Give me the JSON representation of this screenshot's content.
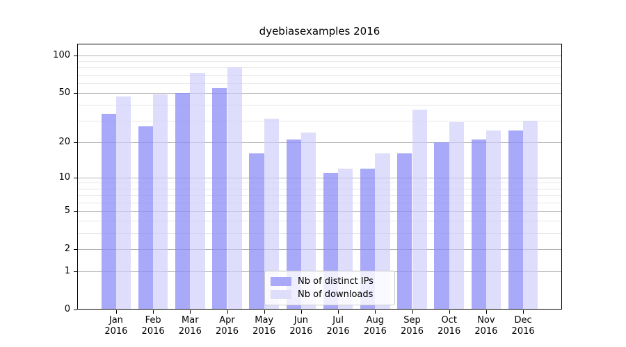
{
  "title": "dyebiasexamples 2016",
  "chart_data": {
    "type": "bar",
    "title": "dyebiasexamples 2016",
    "categories": [
      "Jan",
      "Feb",
      "Mar",
      "Apr",
      "May",
      "Jun",
      "Jul",
      "Aug",
      "Sep",
      "Oct",
      "Nov",
      "Dec"
    ],
    "year": "2016",
    "series": [
      {
        "name": "Nb of distinct IPs",
        "values": [
          34,
          27,
          50,
          55,
          16,
          21,
          11,
          12,
          16,
          20,
          21,
          25
        ],
        "bar_fill": "rgba(140,140,247,0.75)",
        "swatch": "#a9a9f8"
      },
      {
        "name": "Nb of downloads",
        "values": [
          47,
          49,
          73,
          80,
          31,
          24,
          12,
          16,
          37,
          29,
          25,
          30
        ],
        "bar_fill": "rgba(205,205,250,0.65)",
        "swatch": "#dedefb"
      }
    ],
    "y_axis": {
      "scale": "log1p",
      "ticks": [
        0,
        1,
        2,
        5,
        10,
        20,
        50,
        100
      ],
      "minor_ticks": [
        3,
        4,
        6,
        7,
        8,
        9,
        30,
        40,
        60,
        70,
        80,
        90
      ],
      "max": 124
    },
    "legend_position": "bottom-center",
    "grid": "on",
    "colors": {
      "major_grid": "#b3b3b3",
      "minor_grid": "#e7e7e7",
      "spine": "#000000",
      "text": "#000000"
    }
  }
}
